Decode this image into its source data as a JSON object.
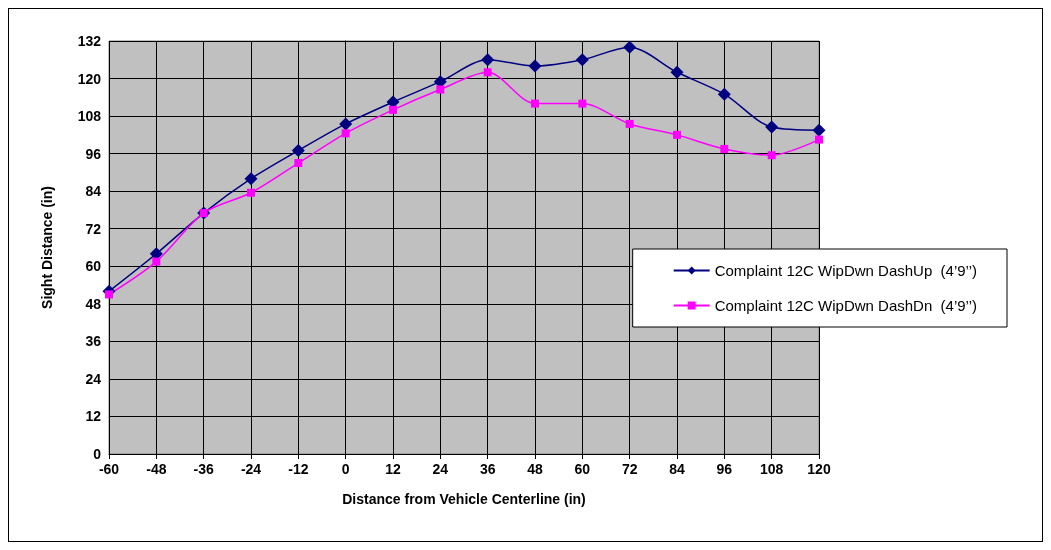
{
  "chart_data": {
    "type": "line",
    "xlabel": "Distance from Vehicle Centerline (in)",
    "ylabel": "Sight Distance (in)",
    "x": [
      -60,
      -48,
      -36,
      -24,
      -12,
      0,
      12,
      24,
      36,
      48,
      60,
      72,
      84,
      96,
      108,
      120
    ],
    "xlim": [
      -60,
      120
    ],
    "xticks": [
      -60,
      -48,
      -36,
      -24,
      -12,
      0,
      12,
      24,
      36,
      48,
      60,
      72,
      84,
      96,
      108,
      120
    ],
    "ylim": [
      0,
      132
    ],
    "yticks": [
      0,
      12,
      24,
      36,
      48,
      60,
      72,
      84,
      96,
      108,
      120,
      132
    ],
    "grid": true,
    "legend": "right",
    "line_style": "solid",
    "series": [
      {
        "name": "Complaint 12C WipDwn DashUp  (4’9’’)",
        "color": "#000080",
        "marker": "diamond",
        "values": [
          52,
          64,
          77,
          88,
          97,
          105.5,
          112.5,
          119,
          126,
          124,
          126,
          130,
          122,
          115,
          104.5,
          103.5
        ]
      },
      {
        "name": "Complaint 12C WipDwn DashDn  (4’9’’)",
        "color": "#ff00ff",
        "marker": "square",
        "values": [
          51,
          61.5,
          77,
          83.5,
          93,
          102.5,
          110,
          116.5,
          122,
          112,
          112,
          105.5,
          102,
          97.5,
          95.5,
          100.5
        ]
      }
    ]
  }
}
